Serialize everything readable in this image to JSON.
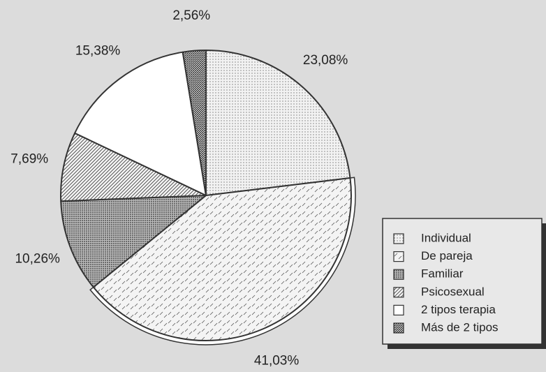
{
  "chart_data": {
    "type": "pie",
    "categories": [
      "Individual",
      "De pareja",
      "Familiar",
      "Psicosexual",
      "2 tipos terapia",
      "Más de 2 tipos"
    ],
    "values": [
      23.08,
      41.03,
      10.26,
      7.69,
      15.38,
      2.56
    ],
    "value_labels": [
      "23,08%",
      "41,03%",
      "10,26%",
      "7,69%",
      "15,38%",
      "2,56%"
    ],
    "patterns": [
      "dots",
      "dashes",
      "dense-dots",
      "hatch",
      "none",
      "dense-hatch"
    ],
    "legend": "lower right"
  }
}
